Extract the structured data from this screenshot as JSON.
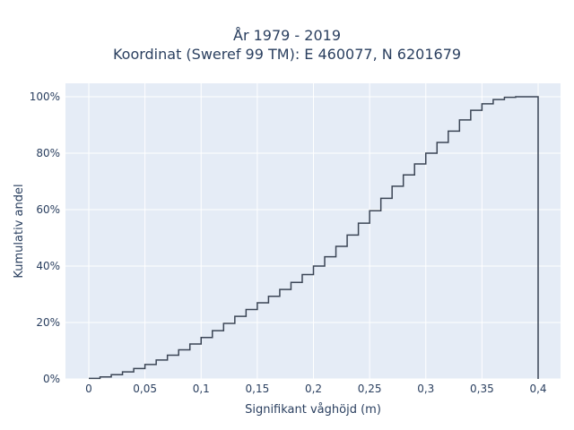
{
  "chart_data": {
    "type": "line",
    "title_line1": "År 1979 - 2019",
    "title_line2": "Koordinat (Sweref 99 TM): E 460077, N 6201679",
    "xlabel": "Signifikant våghöjd (m)",
    "ylabel": "Kumulativ andel",
    "xlim": [
      -0.02,
      0.42
    ],
    "ylim": [
      0,
      1.04
    ],
    "x_ticks": [
      0,
      0.05,
      0.1,
      0.15,
      0.2,
      0.25,
      0.3,
      0.35,
      0.4
    ],
    "x_tick_labels": [
      "0",
      "0,05",
      "0,1",
      "0,15",
      "0,2",
      "0,25",
      "0,3",
      "0,35",
      "0,4"
    ],
    "y_ticks": [
      0,
      0.2,
      0.4,
      0.6,
      0.8,
      1.0
    ],
    "y_tick_labels": [
      "0%",
      "20%",
      "40%",
      "60%",
      "80%",
      "100%"
    ],
    "grid": true,
    "step": true,
    "line_color": "#3b4555",
    "plot_bg": "#e5ecf6",
    "x": [
      0,
      0.01,
      0.02,
      0.03,
      0.04,
      0.05,
      0.06,
      0.07,
      0.08,
      0.09,
      0.1,
      0.11,
      0.12,
      0.13,
      0.14,
      0.15,
      0.16,
      0.17,
      0.18,
      0.19,
      0.2,
      0.21,
      0.22,
      0.23,
      0.24,
      0.25,
      0.26,
      0.27,
      0.28,
      0.29,
      0.3,
      0.31,
      0.32,
      0.33,
      0.34,
      0.35,
      0.36,
      0.37,
      0.38,
      0.39,
      0.4
    ],
    "y": [
      0.002,
      0.007,
      0.015,
      0.025,
      0.037,
      0.051,
      0.067,
      0.084,
      0.103,
      0.124,
      0.147,
      0.171,
      0.197,
      0.222,
      0.246,
      0.27,
      0.293,
      0.317,
      0.342,
      0.37,
      0.4,
      0.433,
      0.47,
      0.51,
      0.552,
      0.596,
      0.64,
      0.683,
      0.723,
      0.762,
      0.8,
      0.838,
      0.878,
      0.918,
      0.952,
      0.975,
      0.99,
      0.998,
      1.0,
      1.0,
      0.0
    ]
  }
}
